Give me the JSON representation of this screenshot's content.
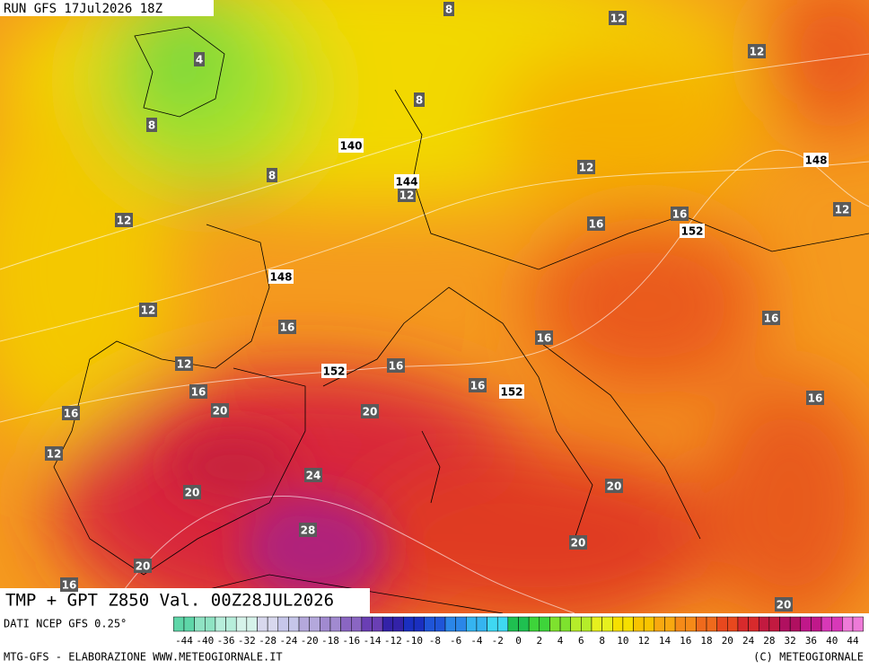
{
  "header": {
    "run": "RUN GFS 17Jul2026 18Z"
  },
  "map": {
    "title": "TMP + GPT Z850 Val. 00Z28JUL2026",
    "temperature_labels": [
      8,
      12,
      4,
      12,
      8,
      8,
      12,
      8,
      12,
      12,
      16,
      16,
      12,
      12,
      16,
      16,
      16,
      12,
      16,
      16,
      16,
      16,
      20,
      20,
      16,
      12,
      24,
      20,
      20,
      28,
      20,
      20,
      16,
      20
    ],
    "height_labels": [
      140,
      144,
      148,
      152,
      148,
      152,
      152
    ]
  },
  "footer": {
    "source": "DATI NCEP GFS 0.25°",
    "credit": "MTG-GFS - ELABORAZIONE WWW.METEOGIORNALE.IT",
    "copyright": "(C) METEOGIORNALE"
  },
  "colorbar": {
    "labels": [
      -44,
      -40,
      -36,
      -32,
      -28,
      -24,
      -20,
      -18,
      -16,
      -14,
      -12,
      -10,
      -8,
      -6,
      -4,
      -2,
      0,
      2,
      4,
      6,
      8,
      10,
      12,
      14,
      16,
      18,
      20,
      24,
      28,
      32,
      36,
      40,
      44
    ],
    "colors": [
      "#5ed6a8",
      "#8fe3c3",
      "#b7eedb",
      "#d6f3ea",
      "#d8d8ee",
      "#c6c6ea",
      "#b4a8dc",
      "#a18ad0",
      "#8a66c2",
      "#6a3fb4",
      "#3322a8",
      "#1a2fc0",
      "#1f55d8",
      "#2a86e8",
      "#35b4f0",
      "#3fd8f2",
      "#1fc050",
      "#3ed43a",
      "#7ee22e",
      "#b5ec2a",
      "#e6f01e",
      "#f6e000",
      "#f8c400",
      "#f8a810",
      "#f58a18",
      "#ef6a1c",
      "#e8481e",
      "#d82a2c",
      "#c21a40",
      "#b01060",
      "#c0188a",
      "#d838b8",
      "#ee7ad8"
    ]
  }
}
